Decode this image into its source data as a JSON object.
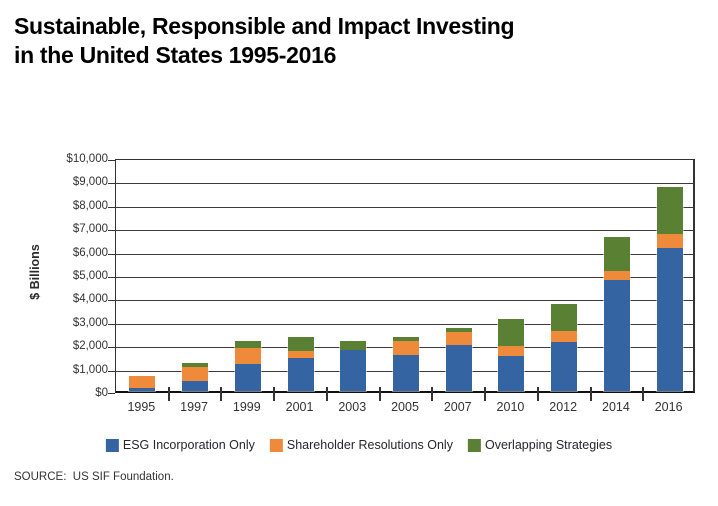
{
  "title": {
    "line1": "Sustainable, Responsible and Impact Investing",
    "line2": "in the United States 1995-2016"
  },
  "source": "SOURCE:  US SIF Foundation.",
  "colors": {
    "esg_blue": "#3564A3",
    "shareholder_orange": "#EF8A3B",
    "overlapping_green": "#5A8033",
    "gridline": "#3A3A3A",
    "axis": "#111111",
    "text_dark": "#333333"
  },
  "chart_data": {
    "type": "bar",
    "stacked": true,
    "title": "Sustainable, Responsible and Impact Investing in the United States 1995-2016",
    "xlabel": "",
    "ylabel": "$ Billions",
    "ylim": [
      0,
      10000
    ],
    "ytick_step": 1000,
    "ytick_labels": [
      "$0",
      "$1,000",
      "$2,000",
      "$3,000",
      "$4,000",
      "$5,000",
      "$6,000",
      "$7,000",
      "$8,000",
      "$9,000",
      "$10,000"
    ],
    "grid": true,
    "legend_position": "bottom",
    "categories": [
      "1995",
      "1997",
      "1999",
      "2001",
      "2003",
      "2005",
      "2007",
      "2010",
      "2012",
      "2014",
      "2016"
    ],
    "series": [
      {
        "name": "ESG Incorporation Only",
        "color": "#3564A3",
        "values": [
          150,
          430,
          1150,
          1400,
          1750,
          1550,
          1950,
          1500,
          2090,
          4750,
          6100
        ]
      },
      {
        "name": "Shareholder Resolutions Only",
        "color": "#EF8A3B",
        "values": [
          490,
          590,
          690,
          310,
          0,
          580,
          560,
          420,
          470,
          390,
          590
        ]
      },
      {
        "name": "Overlapping Strategies",
        "color": "#5A8033",
        "values": [
          0,
          180,
          310,
          610,
          400,
          160,
          200,
          1150,
          1180,
          1430,
          2030
        ]
      }
    ],
    "totals": [
      640,
      1200,
      2150,
      2320,
      2150,
      2290,
      2710,
      3070,
      3740,
      6570,
      8720
    ]
  }
}
